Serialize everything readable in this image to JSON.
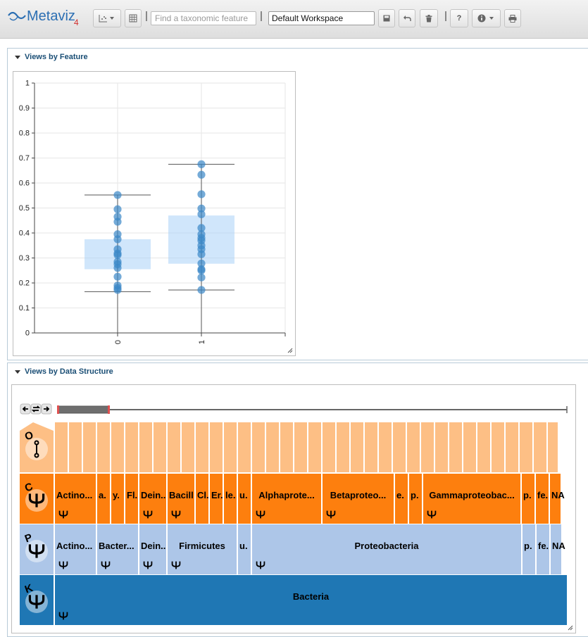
{
  "app": {
    "logo_text": "Metaviz",
    "logo_version": "4"
  },
  "toolbar": {
    "search_placeholder": "Find a taxonomic feature",
    "workspace_value": "Default Workspace",
    "help_label": "?"
  },
  "panels": {
    "feature_title": "Views by Feature",
    "structure_title": "Views by Data Structure"
  },
  "chart_data": {
    "type": "scatter",
    "categories": [
      "0",
      "1"
    ],
    "ylim": [
      0,
      1
    ],
    "yticks": [
      "0",
      "0.1",
      "0.2",
      "0.3",
      "0.4",
      "0.5",
      "0.6",
      "0.7",
      "0.8",
      "0.9",
      "1"
    ],
    "grid": true,
    "boxes": [
      {
        "category": "0",
        "q1": 0.255,
        "q3": 0.375,
        "whisker_low": 0.165,
        "whisker_high": 0.552
      },
      {
        "category": "1",
        "q1": 0.277,
        "q3": 0.47,
        "whisker_low": 0.172,
        "whisker_high": 0.675
      }
    ],
    "series": [
      {
        "category": "0",
        "values": [
          0.552,
          0.495,
          0.465,
          0.445,
          0.395,
          0.375,
          0.335,
          0.318,
          0.312,
          0.285,
          0.275,
          0.26,
          0.225,
          0.19,
          0.18,
          0.172
        ]
      },
      {
        "category": "1",
        "values": [
          0.675,
          0.633,
          0.555,
          0.498,
          0.475,
          0.42,
          0.395,
          0.38,
          0.37,
          0.35,
          0.335,
          0.315,
          0.278,
          0.255,
          0.25,
          0.222,
          0.172
        ]
      }
    ],
    "colors": {
      "point": "#3a87c8",
      "box": "#a9d1f7"
    }
  },
  "icicle": {
    "levels": [
      {
        "letter": "O",
        "color": "#fdbf85"
      },
      {
        "letter": "C",
        "color": "#fd7f0e"
      },
      {
        "letter": "P",
        "color": "#adc6e8"
      },
      {
        "letter": "K",
        "color": "#1f77b4"
      }
    ],
    "rows": [
      {
        "level": "O",
        "cells": [
          {
            "w": 20,
            "label": ""
          },
          {
            "w": 20,
            "label": ""
          },
          {
            "w": 20,
            "label": ""
          },
          {
            "w": 20,
            "label": ""
          },
          {
            "w": 20,
            "label": ""
          },
          {
            "w": 20,
            "label": ""
          },
          {
            "w": 20,
            "label": ""
          },
          {
            "w": 20,
            "label": ""
          },
          {
            "w": 20,
            "label": ""
          },
          {
            "w": 20,
            "label": ""
          },
          {
            "w": 20,
            "label": ""
          },
          {
            "w": 20,
            "label": ""
          },
          {
            "w": 20,
            "label": ""
          },
          {
            "w": 20,
            "label": ""
          },
          {
            "w": 20,
            "label": ""
          },
          {
            "w": 20,
            "label": ""
          },
          {
            "w": 20,
            "label": ""
          },
          {
            "w": 20,
            "label": ""
          },
          {
            "w": 20,
            "label": ""
          },
          {
            "w": 20,
            "label": ""
          },
          {
            "w": 20,
            "label": ""
          },
          {
            "w": 20,
            "label": ""
          },
          {
            "w": 20,
            "label": ""
          },
          {
            "w": 20,
            "label": ""
          },
          {
            "w": 20,
            "label": ""
          },
          {
            "w": 20,
            "label": ""
          },
          {
            "w": 20,
            "label": ""
          },
          {
            "w": 20,
            "label": ""
          },
          {
            "w": 20,
            "label": ""
          },
          {
            "w": 20,
            "label": ""
          },
          {
            "w": 20,
            "label": ""
          },
          {
            "w": 20,
            "label": ""
          },
          {
            "w": 20,
            "label": ""
          },
          {
            "w": 20,
            "label": ""
          },
          {
            "w": 20,
            "label": ""
          },
          {
            "w": 16,
            "label": ""
          }
        ]
      },
      {
        "level": "C",
        "cells": [
          {
            "w": 60,
            "label": "Actino...",
            "icon": true
          },
          {
            "w": 20,
            "label": "a."
          },
          {
            "w": 20,
            "label": "y."
          },
          {
            "w": 20,
            "label": "Fl."
          },
          {
            "w": 40,
            "label": "Dein..",
            "icon": true
          },
          {
            "w": 40,
            "label": "Bacill",
            "icon": true
          },
          {
            "w": 20,
            "label": "Cl."
          },
          {
            "w": 20,
            "label": "Er."
          },
          {
            "w": 20,
            "label": "le."
          },
          {
            "w": 20,
            "label": "u."
          },
          {
            "w": 100,
            "label": "Alphaprote...",
            "icon": true
          },
          {
            "w": 103,
            "label": "Betaproteo...",
            "icon": true
          },
          {
            "w": 20,
            "label": "e."
          },
          {
            "w": 20,
            "label": "p."
          },
          {
            "w": 140,
            "label": "Gammaproteobac...",
            "icon": true
          },
          {
            "w": 20,
            "label": "p."
          },
          {
            "w": 20,
            "label": "fe."
          },
          {
            "w": 17,
            "label": "NA"
          }
        ]
      },
      {
        "level": "P",
        "cells": [
          {
            "w": 60,
            "label": "Actino...",
            "icon": true
          },
          {
            "w": 60,
            "label": "Bacter...",
            "icon": true
          },
          {
            "w": 40,
            "label": "Dein..",
            "icon": true
          },
          {
            "w": 100,
            "label": "Firmicutes",
            "icon": true
          },
          {
            "w": 20,
            "label": "u."
          },
          {
            "w": 384,
            "label": "Proteobacteria",
            "icon": true
          },
          {
            "w": 20,
            "label": "p."
          },
          {
            "w": 20,
            "label": "fe."
          },
          {
            "w": 17,
            "label": "NA"
          }
        ]
      },
      {
        "level": "K",
        "cells": [
          {
            "w": 729,
            "label": "Bacteria",
            "icon": true
          }
        ]
      }
    ]
  }
}
